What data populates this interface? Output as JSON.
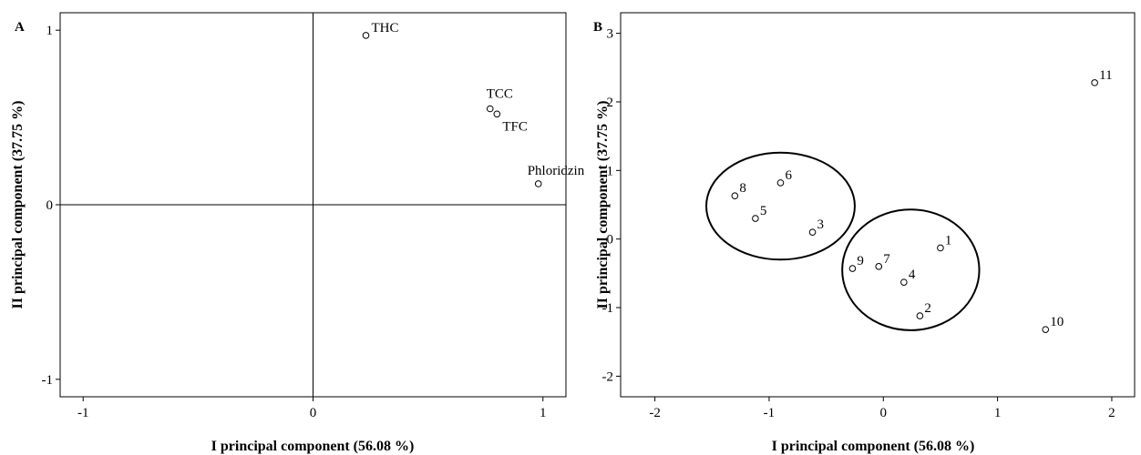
{
  "chart_data": [
    {
      "panel": "A",
      "type": "scatter",
      "xlabel": "I principal component (56.08 %)",
      "ylabel": "II principal component (37.75 %)",
      "xlim": [
        -1.1,
        1.1
      ],
      "ylim": [
        -1.1,
        1.1
      ],
      "xticks": [
        -1,
        0,
        1
      ],
      "yticks": [
        -1,
        0,
        1
      ],
      "grid": false,
      "reference_lines": [
        "x=0",
        "y=0"
      ],
      "points": [
        {
          "label": "THC",
          "x": 0.23,
          "y": 0.97
        },
        {
          "label": "TCC",
          "x": 0.77,
          "y": 0.55
        },
        {
          "label": "TFC",
          "x": 0.8,
          "y": 0.52
        },
        {
          "label": "Phloridzin",
          "x": 0.98,
          "y": 0.12
        }
      ]
    },
    {
      "panel": "B",
      "type": "scatter",
      "xlabel": "I principal component (56.08 %)",
      "ylabel": "II principal component (37.75 %)",
      "xlim": [
        -2.3,
        2.2
      ],
      "ylim": [
        -2.3,
        3.3
      ],
      "xticks": [
        -2,
        -1,
        0,
        1,
        2
      ],
      "yticks": [
        -2,
        -1,
        0,
        1,
        2,
        3
      ],
      "grid": false,
      "points": [
        {
          "label": "1",
          "x": 0.5,
          "y": -0.13
        },
        {
          "label": "2",
          "x": 0.32,
          "y": -1.12
        },
        {
          "label": "3",
          "x": -0.62,
          "y": 0.1
        },
        {
          "label": "4",
          "x": 0.18,
          "y": -0.63
        },
        {
          "label": "5",
          "x": -1.12,
          "y": 0.3
        },
        {
          "label": "6",
          "x": -0.9,
          "y": 0.82
        },
        {
          "label": "7",
          "x": -0.04,
          "y": -0.4
        },
        {
          "label": "8",
          "x": -1.3,
          "y": 0.63
        },
        {
          "label": "9",
          "x": -0.27,
          "y": -0.43
        },
        {
          "label": "10",
          "x": 1.42,
          "y": -1.32
        },
        {
          "label": "11",
          "x": 1.85,
          "y": 2.28
        }
      ],
      "cluster_ellipses": [
        {
          "members": [
            "3",
            "5",
            "6",
            "8"
          ],
          "cx": -0.9,
          "cy": 0.48,
          "rx": 0.65,
          "ry": 0.78
        },
        {
          "members": [
            "1",
            "2",
            "4",
            "7",
            "9"
          ],
          "cx": 0.24,
          "cy": -0.45,
          "rx": 0.6,
          "ry": 0.88
        }
      ]
    }
  ]
}
